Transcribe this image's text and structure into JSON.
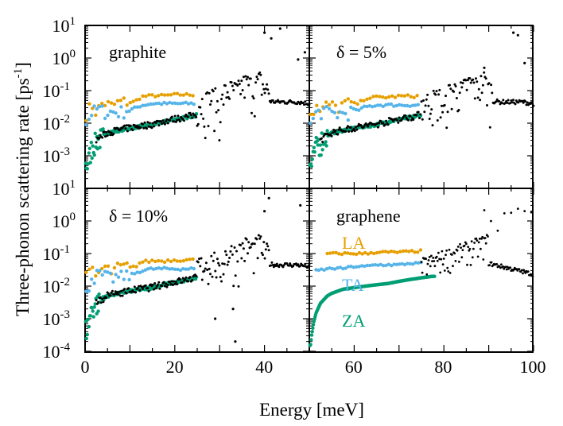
{
  "chart_data": {
    "type": "scatter",
    "ylabel": "Three-phonon scattering rate [ps",
    "ylabel_sup": "-1",
    "ylabel_close": "]",
    "xlabel": "Energy [meV]",
    "xlim": [
      0,
      100
    ],
    "ylim": [
      0.0001,
      10
    ],
    "yscale": "log",
    "layout": "2x2 shared axes",
    "colors": {
      "LA": "#E69F00",
      "TA": "#56B4E9",
      "ZA": "#009E73",
      "other": "#000000"
    },
    "x_ticks": [
      {
        "label": "0",
        "value": 0
      },
      {
        "label": "20",
        "value": 20
      },
      {
        "label": "40",
        "value": 40
      },
      {
        "label": "60",
        "value": 60
      },
      {
        "label": "80",
        "value": 80
      },
      {
        "label": "100",
        "value": 100
      }
    ],
    "y_ticks": [
      {
        "base": "10",
        "exp": "1",
        "value": 10
      },
      {
        "base": "10",
        "exp": "0",
        "value": 1
      },
      {
        "base": "10",
        "exp": "-1",
        "value": 0.1
      },
      {
        "base": "10",
        "exp": "-2",
        "value": 0.01
      },
      {
        "base": "10",
        "exp": "-3",
        "value": 0.001
      },
      {
        "base": "10",
        "exp": "-4",
        "value": 0.0001
      }
    ],
    "panels": [
      {
        "label": "graphite",
        "position": "top-left"
      },
      {
        "label": "δ = 5%",
        "position": "top-right"
      },
      {
        "label": "δ = 10%",
        "position": "bottom-left"
      },
      {
        "label": "graphene",
        "position": "bottom-right",
        "mode_labels": [
          "LA",
          "TA",
          "ZA"
        ]
      }
    ],
    "series_trends": {
      "LA_graphite": [
        [
          1,
          0.02
        ],
        [
          3,
          0.035
        ],
        [
          5,
          0.02
        ],
        [
          8,
          0.04
        ],
        [
          12,
          0.03
        ],
        [
          15,
          0.04
        ],
        [
          22,
          0.045
        ],
        [
          25,
          0.065
        ],
        [
          30,
          0.07
        ],
        [
          35,
          0.07
        ],
        [
          40,
          0.075
        ],
        [
          45,
          0.075
        ],
        [
          49,
          0.075
        ]
      ],
      "TA_graphite": [
        [
          1,
          0.01
        ],
        [
          3,
          0.02
        ],
        [
          6,
          0.025
        ],
        [
          10,
          0.02
        ],
        [
          15,
          0.02
        ],
        [
          20,
          0.025
        ],
        [
          25,
          0.035
        ],
        [
          30,
          0.04
        ],
        [
          35,
          0.04
        ],
        [
          40,
          0.04
        ],
        [
          45,
          0.04
        ],
        [
          49,
          0.04
        ]
      ],
      "ZA_graphite": [
        [
          1,
          0.0005
        ],
        [
          3,
          0.002
        ],
        [
          5,
          0.003
        ],
        [
          10,
          0.005
        ],
        [
          15,
          0.006
        ],
        [
          20,
          0.007
        ],
        [
          25,
          0.008
        ],
        [
          30,
          0.009
        ],
        [
          35,
          0.011
        ],
        [
          40,
          0.013
        ],
        [
          45,
          0.015
        ],
        [
          50,
          0.018
        ]
      ],
      "optical_graphite": [
        [
          52,
          0.02
        ],
        [
          55,
          0.025
        ],
        [
          58,
          0.03
        ],
        [
          60,
          0.01
        ],
        [
          62,
          0.04
        ],
        [
          65,
          0.05
        ],
        [
          68,
          0.045
        ],
        [
          70,
          0.07
        ],
        [
          72,
          0.08
        ],
        [
          75,
          0.06
        ],
        [
          78,
          0.1
        ],
        [
          80,
          0.05
        ],
        [
          85,
          0.045
        ],
        [
          90,
          0.045
        ],
        [
          95,
          0.045
        ],
        [
          100,
          0.04
        ]
      ],
      "LA_graphene": [
        [
          8,
          0.1
        ],
        [
          15,
          0.1
        ],
        [
          20,
          0.1
        ],
        [
          25,
          0.1
        ],
        [
          30,
          0.11
        ],
        [
          35,
          0.11
        ],
        [
          40,
          0.11
        ],
        [
          45,
          0.115
        ],
        [
          50,
          0.12
        ]
      ],
      "TA_graphene": [
        [
          3,
          0.03
        ],
        [
          10,
          0.035
        ],
        [
          15,
          0.035
        ],
        [
          20,
          0.04
        ],
        [
          25,
          0.04
        ],
        [
          30,
          0.045
        ],
        [
          35,
          0.045
        ],
        [
          40,
          0.045
        ],
        [
          45,
          0.05
        ],
        [
          50,
          0.05
        ]
      ],
      "ZA_graphene": [
        [
          0.5,
          0.00015
        ],
        [
          1,
          0.0003
        ],
        [
          2,
          0.0008
        ],
        [
          3,
          0.0015
        ],
        [
          5,
          0.003
        ],
        [
          8,
          0.005
        ],
        [
          10,
          0.006
        ],
        [
          15,
          0.008
        ],
        [
          20,
          0.009
        ],
        [
          25,
          0.01
        ],
        [
          30,
          0.011
        ],
        [
          35,
          0.012
        ],
        [
          40,
          0.014
        ],
        [
          45,
          0.016
        ],
        [
          50,
          0.018
        ],
        [
          55,
          0.02
        ]
      ]
    }
  }
}
